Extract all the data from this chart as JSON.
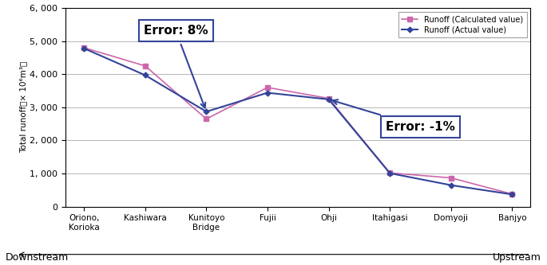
{
  "categories": [
    "Oriono,\nKorioka",
    "Kashiwara",
    "Kunitoyo\nBridge",
    "Fujii",
    "Ohji",
    "Itahigasi",
    "Domyoji",
    "Banjyo"
  ],
  "calculated": [
    4800,
    4250,
    2650,
    3600,
    3270,
    1020,
    870,
    380
  ],
  "actual": [
    4780,
    3970,
    2870,
    3440,
    3240,
    1010,
    650,
    370
  ],
  "calc_color": "#cc66aa",
  "actual_color": "#334499",
  "ylim": [
    0,
    6000
  ],
  "yticks": [
    0,
    1000,
    2000,
    3000,
    4000,
    5000,
    6000
  ],
  "ytick_labels": [
    "0",
    "1, 000",
    "2, 000",
    "3, 000",
    "4, 000",
    "5, 000",
    "6, 000"
  ],
  "legend_calc": "Runoff (Calculated value)",
  "legend_actual": "Runoff (Actual value)",
  "error1_text": "Error: 8%",
  "error2_text": "Error: -1%",
  "downstream_label": "Downstream",
  "upstream_label": "Upstream",
  "background_color": "#ffffff",
  "grid_color": "#aaaaaa",
  "ylabel": "Total runoff（× 10⁶m³）"
}
